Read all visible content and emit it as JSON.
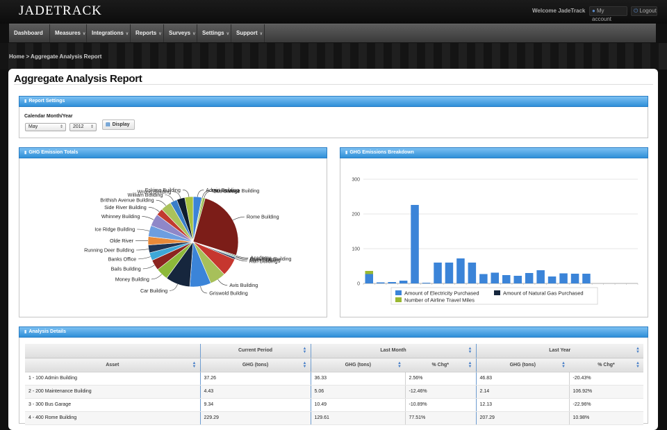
{
  "app": {
    "logo": "JADETRACK"
  },
  "header": {
    "welcome": "Welcome JadeTrack",
    "my_account": "My account",
    "logout": "Logout"
  },
  "nav": [
    {
      "label": "Dashboard",
      "has_menu": false
    },
    {
      "label": "Measures",
      "has_menu": true
    },
    {
      "label": "Integrations",
      "has_menu": true
    },
    {
      "label": "Reports",
      "has_menu": true
    },
    {
      "label": "Surveys",
      "has_menu": true
    },
    {
      "label": "Settings",
      "has_menu": true
    },
    {
      "label": "Support",
      "has_menu": true
    }
  ],
  "breadcrumb": "Home > Aggregate Analysis Report",
  "page_title": "Aggregate Analysis Report",
  "report_settings": {
    "title": "Report Settings",
    "calendar_label": "Calendar Month/Year",
    "month": "May",
    "year": "2012",
    "display_label": "Display"
  },
  "pie_panel": {
    "title": "GHG Emission Totals"
  },
  "bar_panel": {
    "title": "GHG Emissions Breakdown"
  },
  "chart_data": [
    {
      "type": "pie",
      "slices": [
        {
          "label": "Admin Building",
          "value": 3.1,
          "color": "#3b84d8"
        },
        {
          "label": "Maintenance Building",
          "value": 0.4,
          "color": "#8db93a"
        },
        {
          "label": "Bus Garage",
          "value": 0.8,
          "color": "#9ab84a"
        },
        {
          "label": "Rome Building",
          "value": 25.5,
          "color": "#7c1d18"
        },
        {
          "label": "Academy",
          "value": 0.3,
          "color": "#111f33"
        },
        {
          "label": "Spaulding Building",
          "value": 0.3,
          "color": "#5da83a"
        },
        {
          "label": "River Building",
          "value": 0.3,
          "color": "#3b84d8"
        },
        {
          "label": "Run Building",
          "value": 0.6,
          "color": "#1b2b44"
        },
        {
          "label": "",
          "value": 6.5,
          "color": "#c6372f"
        },
        {
          "label": "Avis Building",
          "value": 5.7,
          "color": "#a7c05a"
        },
        {
          "label": "Griswold Building",
          "value": 7.6,
          "color": "#3b84d8"
        },
        {
          "label": "Car Building",
          "value": 8.8,
          "color": "#16263d"
        },
        {
          "label": "Money Building",
          "value": 4.4,
          "color": "#8db93a"
        },
        {
          "label": "Bails Building",
          "value": 3.8,
          "color": "#8c2520"
        },
        {
          "label": "Banks Office",
          "value": 2.8,
          "color": "#3ea8d8"
        },
        {
          "label": "Running Deer Building",
          "value": 2.8,
          "color": "#1f3555"
        },
        {
          "label": "Olde River",
          "value": 3.0,
          "color": "#e88a3a"
        },
        {
          "label": "Ice Ridge Building",
          "value": 4.0,
          "color": "#6d9ee0"
        },
        {
          "label": "Whinney Building",
          "value": 4.4,
          "color": "#8f87c8"
        },
        {
          "label": "Side River Building",
          "value": 2.5,
          "color": "#c23a30"
        },
        {
          "label": "Brithish Avenue Building",
          "value": 3.8,
          "color": "#aac25c"
        },
        {
          "label": "William Building",
          "value": 2.5,
          "color": "#3a7ec8"
        },
        {
          "label": "Wrong Building",
          "value": 2.9,
          "color": "#0f1c2e"
        },
        {
          "label": "Eskimo Building",
          "value": 3.0,
          "color": "#a8c240"
        }
      ]
    },
    {
      "type": "bar",
      "series": [
        {
          "name": "Amount of Electricity Purchased",
          "color": "#3b84d8",
          "values": [
            27,
            3,
            4,
            8,
            226,
            2,
            60,
            60,
            72,
            60,
            27,
            31,
            24,
            22,
            30,
            38,
            20,
            29,
            28,
            28,
            0,
            0,
            0,
            0
          ]
        },
        {
          "name": "Amount of Natural Gas Purchased",
          "color": "#16263d",
          "values": [
            0,
            0,
            0,
            0,
            0,
            0,
            0,
            0,
            0,
            0,
            0,
            0,
            0,
            0,
            0,
            0,
            0,
            0,
            0,
            0,
            0,
            0,
            0,
            0
          ]
        },
        {
          "name": "Number of Airline Travel Miles",
          "color": "#9ab832",
          "values": [
            9,
            0,
            0,
            0,
            0,
            0,
            0,
            0,
            0,
            0,
            0,
            0,
            0,
            0,
            0,
            0,
            0,
            0,
            0,
            0,
            0,
            0,
            0,
            0
          ]
        }
      ],
      "yticks": [
        0,
        100,
        200,
        300
      ],
      "ylim": [
        0,
        300
      ],
      "grid": true,
      "legend": "bottom"
    }
  ],
  "details": {
    "title": "Analysis Details",
    "groups": [
      "Current Period",
      "Last Month",
      "Last Year"
    ],
    "columns": [
      "Asset",
      "GHG (tons)",
      "GHG (tons)",
      "% Chg*",
      "GHG (tons)",
      "% Chg*"
    ],
    "rows": [
      [
        "1 - 100 Admin Building",
        "37.26",
        "36.33",
        "2.56%",
        "46.83",
        "-20.43%"
      ],
      [
        "2 - 200 Maintenance Building",
        "4.43",
        "5.06",
        "-12.46%",
        "2.14",
        "106.92%"
      ],
      [
        "3 - 300 Bus Garage",
        "9.34",
        "10.49",
        "-10.89%",
        "12.13",
        "-22.96%"
      ],
      [
        "4 - 400 Rome Building",
        "229.29",
        "129.61",
        "77.51%",
        "207.29",
        "10.98%"
      ]
    ]
  }
}
